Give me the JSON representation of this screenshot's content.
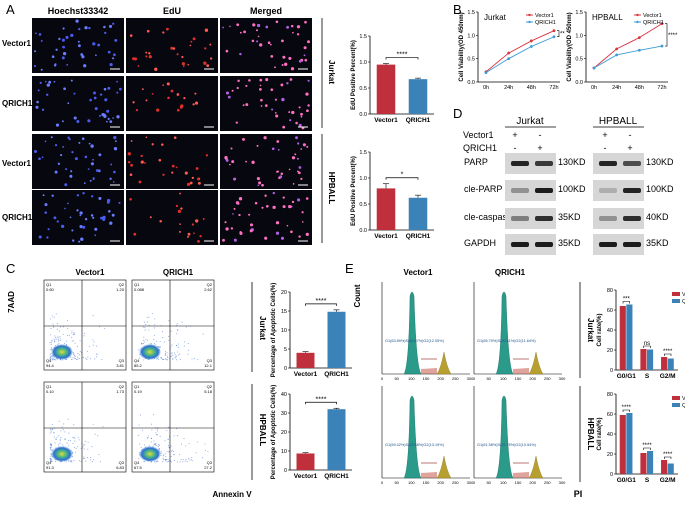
{
  "panels": {
    "A": {
      "letter": "A",
      "columns": [
        "Hoechst33342",
        "EdU",
        "Merged"
      ],
      "rows": [
        "Vector1",
        "QRICH1",
        "Vector1",
        "QRICH1"
      ],
      "groups": [
        "Jurkat",
        "HPBALL"
      ]
    },
    "B": {
      "letter": "B"
    },
    "C": {
      "letter": "C",
      "columns": [
        "Vector1",
        "QRICH1"
      ],
      "groups": [
        "Jurkat",
        "HPBALL"
      ],
      "ylabel": "7AAD",
      "xlabel": "Annexin V",
      "quadrants": [
        {
          "q1": "Q1",
          "q2": "Q2",
          "q3": "Q3",
          "q4": "Q4",
          "v1": "0.60",
          "v2": "1.20",
          "v3": "3.81",
          "v4": "94.4"
        },
        {
          "q1": "Q1",
          "q2": "Q2",
          "q3": "Q3",
          "q4": "Q4",
          "v1": "0.088",
          "v2": "2.62",
          "v3": "12.1",
          "v4": "85.2"
        },
        {
          "q1": "Q1",
          "q2": "Q2",
          "q3": "Q3",
          "q4": "Q4",
          "v1": "0.10",
          "v2": "1.73",
          "v3": "6.83",
          "v4": "91.3"
        },
        {
          "q1": "Q1",
          "q2": "Q2",
          "q3": "Q3",
          "q4": "Q4",
          "v1": "0.19",
          "v2": "5.18",
          "v3": "27.2",
          "v4": "67.5"
        }
      ]
    },
    "D": {
      "letter": "D",
      "cells": [
        "Jurkat",
        "HPBALL"
      ],
      "rows": [
        "Vector1",
        "QRICH1"
      ],
      "signs": [
        [
          "+",
          "-",
          "+",
          "-"
        ],
        [
          "-",
          "+",
          "-",
          "+"
        ]
      ],
      "proteins": [
        "PARP",
        "cle-PARP",
        "cle-caspase9",
        "GAPDH"
      ],
      "kd_left": [
        "130KD",
        "100KD",
        "35KD",
        "35KD"
      ],
      "kd_right": [
        "130KD",
        "100KD",
        "40KD",
        "35KD"
      ]
    },
    "E": {
      "letter": "E",
      "columns": [
        "Vector1",
        "QRICH1"
      ],
      "groups": [
        "Jurkat",
        "HPBALL"
      ],
      "ylabel": "Count",
      "xlabel": "PI",
      "xticks": [
        "0",
        "50",
        "100",
        "150",
        "200",
        "250",
        "300"
      ],
      "annotations": [
        "G1(63.89%)S(20.07%)G2(12.05%)",
        "G1(65.79%)S(20.51%)G2(11.64%)",
        "G1(59.42%)S(22.58%)G2(13.19%)",
        "G1(61.58%)S(22.75%)G2(10.54%)"
      ]
    }
  },
  "chart_data": [
    {
      "type": "bar",
      "panel": "A",
      "group": "Jurkat",
      "categories": [
        "Vector1",
        "QRICH1"
      ],
      "values": [
        0.95,
        0.67
      ],
      "errors": [
        0.02,
        0.02
      ],
      "ylabel": "EdU Positive Percent(%)",
      "ylim": [
        0,
        1.5
      ],
      "yticks": [
        "0.0",
        "0.5",
        "1.0",
        "1.5"
      ],
      "sig": [
        {
          "label": "****",
          "from": 0,
          "to": 1
        }
      ],
      "colors": [
        "#c0303c",
        "#3b82b8"
      ]
    },
    {
      "type": "bar",
      "panel": "A",
      "group": "HPBALL",
      "categories": [
        "Vector1",
        "QRICH1"
      ],
      "values": [
        0.8,
        0.62
      ],
      "errors": [
        0.09,
        0.05
      ],
      "ylabel": "EdU Positive Percent(%)",
      "ylim": [
        0,
        1.5
      ],
      "yticks": [
        "0.0",
        "0.5",
        "1.0",
        "1.5"
      ],
      "sig": [
        {
          "label": "*",
          "from": 0,
          "to": 1
        }
      ],
      "colors": [
        "#c0303c",
        "#3b82b8"
      ]
    },
    {
      "type": "line",
      "panel": "B",
      "title": "Jurkat",
      "x": [
        "0h",
        "24h",
        "48h",
        "72h"
      ],
      "series": [
        {
          "name": "Vector1",
          "values": [
            0.22,
            0.62,
            0.88,
            1.1
          ],
          "color": "#d9343f"
        },
        {
          "name": "QRICH1",
          "values": [
            0.2,
            0.5,
            0.76,
            0.97
          ],
          "color": "#3b9bd9"
        }
      ],
      "ylabel": "Cell Viability(OD 450nm)",
      "ylim": [
        0,
        1.5
      ],
      "yticks": [
        "0.0",
        "0.5",
        "1.0",
        "1.5"
      ],
      "sig": "**"
    },
    {
      "type": "line",
      "panel": "B",
      "title": "HPBALL",
      "x": [
        "0h",
        "24h",
        "48h",
        "72h"
      ],
      "series": [
        {
          "name": "Vector1",
          "values": [
            0.3,
            0.71,
            0.95,
            1.25
          ],
          "color": "#d9343f"
        },
        {
          "name": "QRICH1",
          "values": [
            0.3,
            0.58,
            0.68,
            0.77
          ],
          "color": "#3b9bd9"
        }
      ],
      "ylabel": "Cell Viability(OD 450nm)",
      "ylim": [
        0,
        1.5
      ],
      "yticks": [
        "0.0",
        "0.5",
        "1.0",
        "1.5"
      ],
      "sig": "****"
    },
    {
      "type": "bar",
      "panel": "C",
      "group": "Jurkat",
      "categories": [
        "Vector1",
        "QRICH1"
      ],
      "values": [
        4.0,
        14.8
      ],
      "errors": [
        0.3,
        0.5
      ],
      "ylabel": "Percentage of Apoptotic Cells(%)",
      "ylim": [
        0,
        20
      ],
      "yticks": [
        "0",
        "5",
        "10",
        "15",
        "20"
      ],
      "sig": [
        {
          "label": "****",
          "from": 0,
          "to": 1
        }
      ],
      "colors": [
        "#c0303c",
        "#3b82b8"
      ]
    },
    {
      "type": "bar",
      "panel": "C",
      "group": "HPBALL",
      "categories": [
        "Vector1",
        "QRICH1"
      ],
      "values": [
        8.7,
        32.0
      ],
      "errors": [
        0.4,
        0.5
      ],
      "ylabel": "Percentage of Apoptotic Cells(%)",
      "ylim": [
        0,
        40
      ],
      "yticks": [
        "0",
        "10",
        "20",
        "30",
        "40"
      ],
      "sig": [
        {
          "label": "****",
          "from": 0,
          "to": 1
        }
      ],
      "colors": [
        "#c0303c",
        "#3b82b8"
      ]
    },
    {
      "type": "bar",
      "panel": "E",
      "group": "Jurkat",
      "categories": [
        "G0/G1",
        "S",
        "G2/M"
      ],
      "series": [
        {
          "name": "Vector1",
          "values": [
            64,
            21,
            13
          ],
          "color": "#c0303c"
        },
        {
          "name": "QRICH1",
          "values": [
            65.5,
            20.5,
            11.5
          ],
          "color": "#3b82b8"
        }
      ],
      "ylabel": "Cell rate(%)",
      "ylim": [
        0,
        80
      ],
      "yticks": [
        "0",
        "20",
        "40",
        "60",
        "80"
      ],
      "sig": [
        "***",
        "ns",
        "****"
      ]
    },
    {
      "type": "bar",
      "panel": "E",
      "group": "HPBALL",
      "categories": [
        "G0/G1",
        "S",
        "G2/M"
      ],
      "series": [
        {
          "name": "Vector1",
          "values": [
            59,
            21,
            14
          ],
          "color": "#c0303c"
        },
        {
          "name": "QRICH1",
          "values": [
            61,
            23,
            10.5
          ],
          "color": "#3b82b8"
        }
      ],
      "ylabel": "Cell rate(%)",
      "ylim": [
        0,
        80
      ],
      "yticks": [
        "0",
        "20",
        "40",
        "60",
        "80"
      ],
      "sig": [
        "****",
        "****",
        "****"
      ]
    }
  ]
}
